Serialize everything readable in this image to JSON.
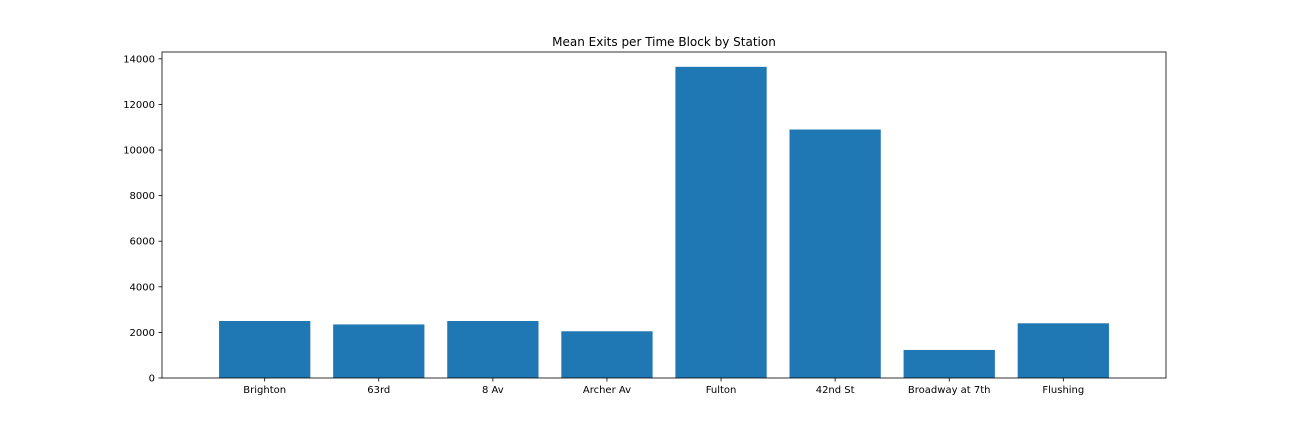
{
  "chart_data": {
    "type": "bar",
    "title": "Mean Exits per Time Block by Station",
    "xlabel": "",
    "ylabel": "",
    "categories": [
      "Brighton",
      "63rd",
      "8 Av",
      "Archer Av",
      "Fulton",
      "42nd St",
      "Broadway at 7th",
      "Flushing"
    ],
    "values": [
      2500,
      2350,
      2500,
      2050,
      13650,
      10900,
      1230,
      2400
    ],
    "ylim": [
      0,
      14300
    ],
    "yticks": [
      0,
      2000,
      4000,
      6000,
      8000,
      10000,
      12000,
      14000
    ],
    "bar_color": "#1f77b4",
    "grid": false,
    "legend": "none"
  }
}
